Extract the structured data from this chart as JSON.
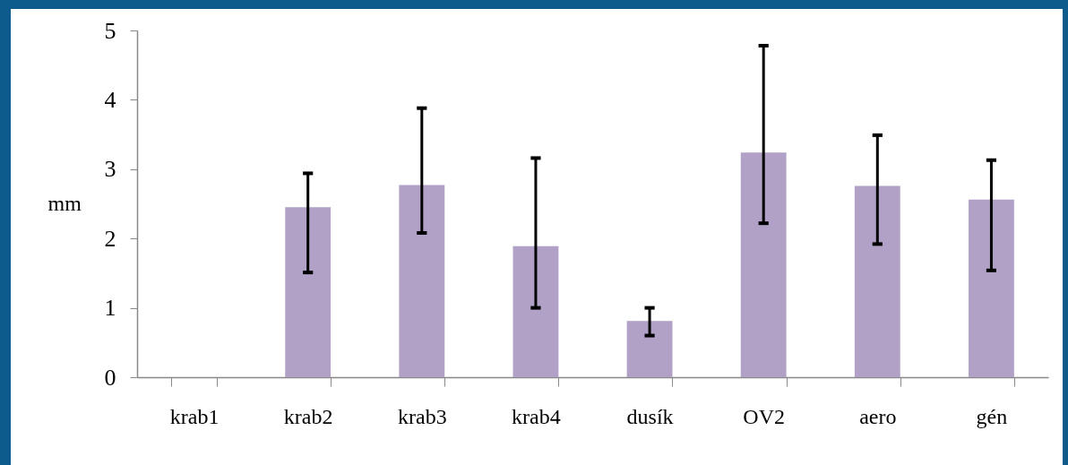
{
  "chart_data": {
    "type": "bar",
    "ylabel": "mm",
    "categories": [
      "krab1",
      "krab2",
      "krab3",
      "krab4",
      "dusík",
      "OV2",
      "aero",
      "gén"
    ],
    "values": [
      null,
      2.45,
      2.77,
      1.89,
      0.81,
      3.24,
      2.76,
      2.56
    ],
    "errors": [
      null,
      [
        1.51,
        2.94
      ],
      [
        2.08,
        3.88
      ],
      [
        1.0,
        3.16
      ],
      [
        0.6,
        1.0
      ],
      [
        2.22,
        4.78
      ],
      [
        1.92,
        3.49
      ],
      [
        1.54,
        3.13
      ]
    ],
    "color": "#b1a1c7",
    "ylim": [
      0,
      5
    ],
    "yticks": [
      0,
      1,
      2,
      3,
      4,
      5
    ],
    "grid": false
  }
}
